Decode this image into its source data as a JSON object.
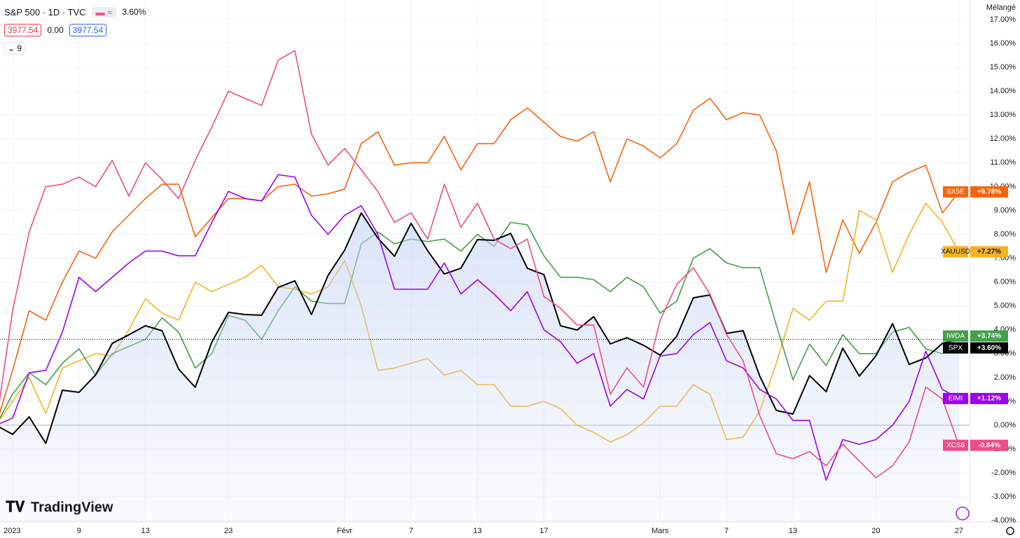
{
  "header": {
    "symbol": "S&P 500 · 1D · TVC",
    "change": "3.60%",
    "price_bid": "3977.54",
    "spread": "0.00",
    "price_ask": "3977.54",
    "indicators_count": "9"
  },
  "scale_mode": "Mélangé",
  "logo": "TradingView",
  "chart_data": {
    "type": "line",
    "categories": [
      null,
      "2023",
      null,
      null,
      null,
      "9",
      null,
      null,
      null,
      "13",
      null,
      null,
      null,
      null,
      "23",
      null,
      null,
      null,
      null,
      null,
      null,
      "Févr",
      null,
      null,
      null,
      "7",
      null,
      null,
      null,
      "13",
      null,
      null,
      null,
      "17",
      null,
      null,
      null,
      null,
      null,
      null,
      "Mars",
      null,
      null,
      null,
      "7",
      null,
      null,
      null,
      "13",
      null,
      null,
      null,
      null,
      "20",
      null,
      null,
      null,
      null,
      "27"
    ],
    "series": [
      {
        "name": "SX5E",
        "color": "#f7630c",
        "last_value_label": "+9.78%",
        "values": [
          0,
          2.3,
          4.8,
          4.4,
          6.0,
          7.3,
          7.0,
          8.1,
          8.8,
          9.5,
          10.1,
          10.1,
          7.9,
          8.7,
          9.5,
          9.5,
          9.4,
          10.0,
          10.1,
          9.6,
          9.7,
          9.9,
          11.8,
          12.3,
          10.9,
          11.0,
          11.0,
          12.1,
          10.7,
          11.8,
          11.8,
          12.8,
          13.3,
          12.7,
          12.1,
          11.9,
          12.3,
          10.2,
          12.0,
          11.7,
          11.2,
          11.8,
          13.2,
          13.7,
          12.8,
          13.1,
          13.0,
          11.5,
          8.0,
          10.2,
          6.4,
          8.6,
          7.2,
          8.5,
          10.2,
          10.6,
          10.9,
          8.9,
          9.78
        ]
      },
      {
        "name": "XAUUSD",
        "color": "#f5b31e",
        "last_value_label": "+7.27%",
        "values": [
          0,
          1.0,
          2.0,
          0.5,
          2.4,
          2.7,
          3.0,
          2.9,
          4.0,
          5.3,
          4.7,
          4.4,
          6.0,
          5.6,
          5.9,
          6.2,
          6.7,
          5.8,
          5.7,
          5.5,
          5.8,
          6.9,
          5.0,
          2.3,
          2.4,
          2.6,
          2.8,
          2.1,
          2.3,
          1.7,
          1.7,
          0.8,
          0.8,
          1.0,
          0.7,
          0.0,
          -0.3,
          -0.7,
          -0.4,
          0.1,
          0.8,
          0.8,
          1.7,
          1.3,
          -0.6,
          -0.5,
          0.6,
          2.6,
          4.9,
          4.4,
          5.2,
          5.2,
          9.0,
          8.6,
          6.4,
          8.0,
          9.3,
          8.5,
          7.27
        ]
      },
      {
        "name": "IWDA",
        "color": "#43a047",
        "last_value_label": "+3.74%",
        "values": [
          0,
          1.3,
          2.2,
          1.7,
          2.6,
          3.2,
          2.1,
          3.0,
          3.3,
          3.6,
          4.5,
          3.9,
          2.4,
          3.0,
          4.6,
          4.4,
          3.6,
          4.8,
          5.8,
          5.2,
          5.1,
          5.1,
          7.6,
          8.1,
          7.6,
          7.8,
          7.7,
          7.8,
          7.3,
          8.0,
          7.5,
          8.5,
          8.4,
          7.1,
          6.2,
          6.2,
          6.1,
          5.6,
          6.2,
          5.8,
          4.7,
          5.2,
          7.0,
          7.4,
          6.8,
          6.6,
          6.6,
          4.2,
          1.9,
          3.4,
          2.5,
          3.8,
          3.0,
          3.0,
          3.9,
          4.1,
          3.2,
          3.0,
          3.74
        ]
      },
      {
        "name": "SPX",
        "color": "#000000",
        "last_value_label": "+3.60%",
        "area": true,
        "price_line": true,
        "values": [
          0,
          -0.38,
          0.35,
          -0.76,
          1.47,
          1.38,
          2.11,
          3.43,
          3.79,
          4.17,
          3.96,
          2.35,
          1.59,
          3.49,
          4.73,
          4.64,
          4.61,
          5.78,
          6.05,
          4.64,
          6.28,
          7.34,
          8.9,
          7.84,
          7.08,
          8.46,
          7.31,
          6.34,
          6.58,
          7.78,
          7.75,
          8.04,
          6.58,
          6.31,
          4.17,
          3.99,
          4.55,
          3.41,
          3.67,
          3.35,
          2.94,
          3.73,
          5.34,
          5.46,
          3.85,
          3.96,
          2.06,
          0.62,
          0.47,
          2.08,
          1.41,
          3.23,
          2.06,
          2.91,
          4.26,
          2.55,
          2.82,
          3.43,
          3.6
        ]
      },
      {
        "name": "EIMI",
        "color": "#9c00f0",
        "last_value_label": "+1.12%",
        "values": [
          0,
          0.3,
          2.2,
          2.3,
          3.9,
          6.2,
          5.6,
          6.2,
          6.8,
          7.3,
          7.3,
          7.1,
          7.1,
          8.5,
          9.8,
          9.5,
          9.4,
          10.5,
          10.4,
          8.8,
          8.0,
          8.8,
          9.2,
          8.0,
          5.7,
          5.7,
          5.7,
          6.8,
          5.5,
          6.1,
          5.5,
          4.8,
          5.6,
          4.0,
          3.5,
          2.6,
          3.0,
          0.8,
          1.5,
          1.1,
          2.9,
          3.0,
          3.8,
          4.3,
          2.7,
          2.4,
          1.5,
          1.1,
          0.2,
          0.2,
          -2.3,
          -0.6,
          -0.8,
          -0.6,
          0.0,
          1.0,
          3.1,
          1.5,
          1.12
        ]
      },
      {
        "name": "XCS6",
        "color": "#ec4d87",
        "last_value_label": "-0.84%",
        "values": [
          0,
          4.8,
          8.1,
          10.0,
          10.1,
          10.4,
          10.0,
          11.1,
          9.6,
          11.0,
          10.3,
          9.5,
          11.1,
          12.5,
          14.0,
          13.7,
          13.4,
          15.3,
          15.7,
          12.2,
          10.9,
          11.6,
          10.7,
          9.8,
          8.5,
          8.9,
          7.8,
          10.1,
          8.3,
          9.3,
          7.8,
          7.4,
          7.8,
          5.4,
          4.9,
          4.2,
          4.2,
          1.3,
          2.4,
          1.6,
          4.4,
          5.9,
          6.6,
          5.5,
          3.8,
          2.7,
          0.4,
          -1.2,
          -1.4,
          -1.1,
          -1.7,
          -0.8,
          -1.5,
          -2.2,
          -1.7,
          -0.7,
          1.6,
          1.1,
          -0.84
        ]
      }
    ],
    "ylim": [
      -4.05,
      17.82
    ],
    "yticks": [
      {
        "value": -4,
        "label": "-4.00%"
      },
      {
        "value": -3,
        "label": "-3.00%"
      },
      {
        "value": -2,
        "label": "-2.00%"
      },
      {
        "value": -1,
        "label": "-1.00%"
      },
      {
        "value": 0,
        "label": "0.00%"
      },
      {
        "value": 1,
        "label": "1.00%"
      },
      {
        "value": 2,
        "label": "2.00%"
      },
      {
        "value": 3,
        "label": "3.00%"
      },
      {
        "value": 4,
        "label": "4.00%"
      },
      {
        "value": 5,
        "label": "5.00%"
      },
      {
        "value": 6,
        "label": "6.00%"
      },
      {
        "value": 7,
        "label": "7.00%"
      },
      {
        "value": 8,
        "label": "8.00%"
      },
      {
        "value": 9,
        "label": "9.00%"
      },
      {
        "value": 10,
        "label": "10.00%"
      },
      {
        "value": 11,
        "label": "11.00%"
      },
      {
        "value": 12,
        "label": "12.00%"
      },
      {
        "value": 13,
        "label": "13.00%"
      },
      {
        "value": 14,
        "label": "14.00%"
      },
      {
        "value": 15,
        "label": "15.00%"
      },
      {
        "value": 16,
        "label": "16.00%"
      },
      {
        "value": 17,
        "label": "17.00%"
      }
    ],
    "grid": true
  }
}
